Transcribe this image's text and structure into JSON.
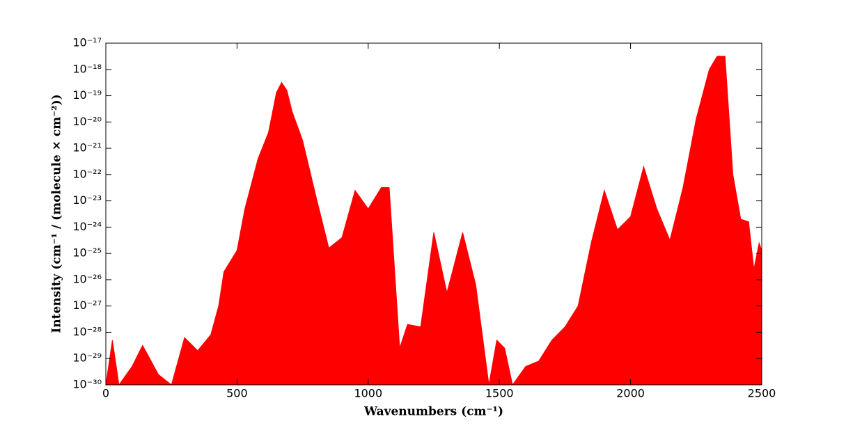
{
  "chart_data": {
    "type": "area",
    "xlabel": "Wavenumbers (cm⁻¹)",
    "ylabel": "Intensity (cm⁻¹ / (molecule × cm⁻²))",
    "log_y": true,
    "color": "#ff0000",
    "x": [
      0,
      25,
      50,
      100,
      140,
      200,
      250,
      300,
      350,
      400,
      430,
      450,
      500,
      530,
      580,
      620,
      650,
      670,
      690,
      710,
      750,
      800,
      850,
      900,
      950,
      1000,
      1050,
      1080,
      1120,
      1150,
      1200,
      1250,
      1300,
      1360,
      1410,
      1460,
      1490,
      1520,
      1550,
      1600,
      1650,
      1700,
      1750,
      1800,
      1850,
      1900,
      1950,
      2000,
      2050,
      2100,
      2150,
      2200,
      2250,
      2300,
      2330,
      2360,
      2390,
      2420,
      2450,
      2470,
      2490,
      2500
    ],
    "values": [
      1e-30,
      5e-29,
      1e-30,
      5e-30,
      3.2e-29,
      2.5e-30,
      1e-30,
      6.3e-29,
      2e-29,
      8e-29,
      1e-27,
      2e-26,
      1.3e-25,
      5e-24,
      4e-22,
      4e-21,
      1.3e-19,
      3.2e-19,
      1.6e-19,
      2.5e-20,
      2e-21,
      1.6e-23,
      1.6e-25,
      4e-25,
      2.5e-23,
      5e-24,
      3.2e-23,
      3.2e-23,
      2.5e-29,
      2e-28,
      1.6e-28,
      6.3e-25,
      3.2e-27,
      6.3e-25,
      6.3e-27,
      1e-30,
      5e-29,
      2.5e-29,
      1e-30,
      5e-30,
      8e-30,
      5e-29,
      1.6e-28,
      1e-27,
      2.5e-25,
      2.5e-23,
      8e-25,
      2.5e-24,
      2e-22,
      5e-24,
      3.2e-25,
      3.2e-23,
      1.3e-20,
      1e-18,
      3.2e-18,
      3.2e-18,
      1e-22,
      2e-24,
      1.6e-24,
      2.5e-26,
      2.5e-25,
      1.3e-25
    ],
    "xlim": [
      0,
      2500
    ],
    "xticks": [
      0,
      500,
      1000,
      1500,
      2000,
      2500
    ],
    "ylim": [
      1e-30,
      1e-17
    ],
    "yticks": [
      {
        "value": 1e-30,
        "label": "10⁻³⁰"
      },
      {
        "value": 1e-29,
        "label": "10⁻²⁹"
      },
      {
        "value": 1e-28,
        "label": "10⁻²⁸"
      },
      {
        "value": 1e-27,
        "label": "10⁻²⁷"
      },
      {
        "value": 1e-26,
        "label": "10⁻²⁶"
      },
      {
        "value": 1e-25,
        "label": "10⁻²⁵"
      },
      {
        "value": 1e-24,
        "label": "10⁻²⁴"
      },
      {
        "value": 1e-23,
        "label": "10⁻²³"
      },
      {
        "value": 1e-22,
        "label": "10⁻²²"
      },
      {
        "value": 1e-21,
        "label": "10⁻²¹"
      },
      {
        "value": 1e-20,
        "label": "10⁻²⁰"
      },
      {
        "value": 1e-19,
        "label": "10⁻¹⁹"
      },
      {
        "value": 1e-18,
        "label": "10⁻¹⁸"
      },
      {
        "value": 1e-17,
        "label": "10⁻¹⁷"
      }
    ]
  }
}
